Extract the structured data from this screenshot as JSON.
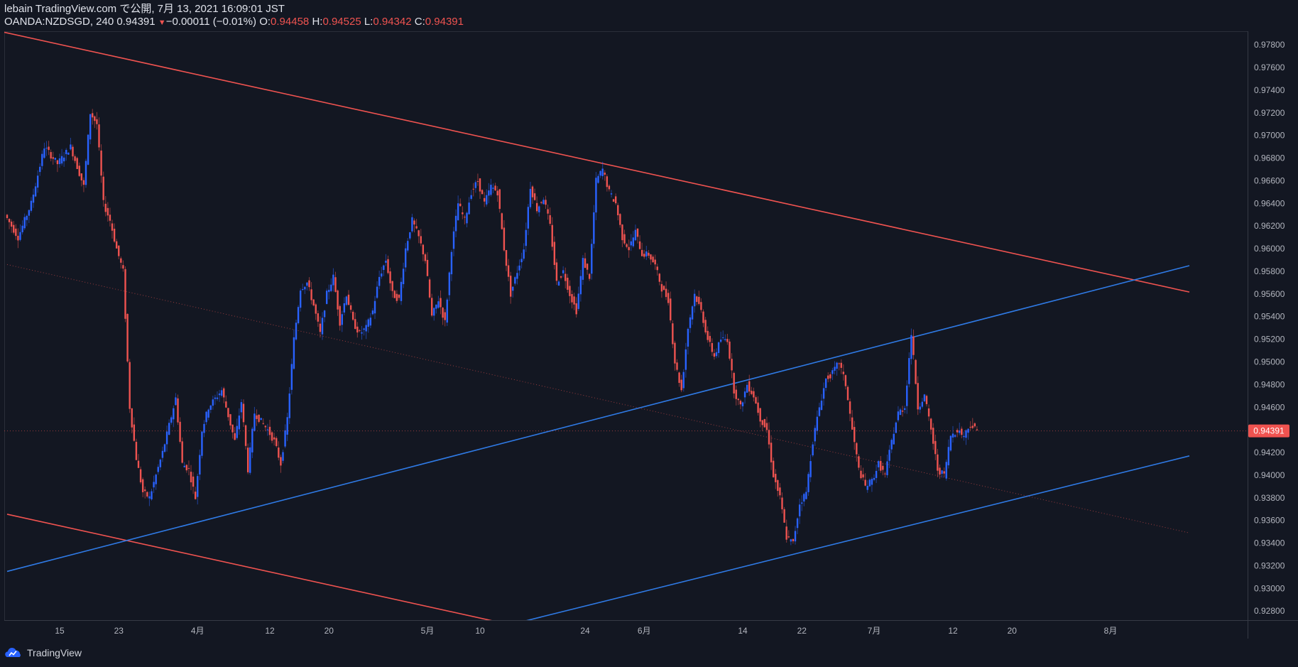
{
  "header": {
    "line1": "lebain TradingView.com で公開, 7月 13, 2021 16:09:01 JST",
    "symbol": "OANDA:NZDSGD, 240",
    "price": "0.94391",
    "change_arrow": "▼",
    "change": "−0.00011 (−0.01%)",
    "open_label": "O:",
    "open": "0.94458",
    "high_label": "H:",
    "high": "0.94525",
    "low_label": "L:",
    "low": "0.94342",
    "close_label": "C:",
    "close": "0.94391"
  },
  "footer": {
    "brand": "TradingView"
  },
  "colors": {
    "background": "#131722",
    "up": "#2962ff",
    "down": "#ef5350",
    "trend_red": "#f05350",
    "trend_blue": "#2f7ae5",
    "axis_text": "#b2b5be",
    "grid": "#2a2e39"
  },
  "chart_data": {
    "type": "candlestick",
    "title": "OANDA:NZDSGD, 240",
    "ylim": [
      0.9272,
      0.9792
    ],
    "yticks": [
      "0.97800",
      "0.97600",
      "0.97400",
      "0.97200",
      "0.97000",
      "0.96800",
      "0.96600",
      "0.96400",
      "0.96200",
      "0.96000",
      "0.95800",
      "0.95600",
      "0.95400",
      "0.95200",
      "0.95000",
      "0.94800",
      "0.94600",
      "0.94400",
      "0.94200",
      "0.94000",
      "0.93800",
      "0.93600",
      "0.93400",
      "0.93200",
      "0.93000",
      "0.92800"
    ],
    "xticks": [
      {
        "label": "15",
        "bar": 8
      },
      {
        "label": "23",
        "bar": 17
      },
      {
        "label": "4月",
        "bar": 29
      },
      {
        "label": "12",
        "bar": 40
      },
      {
        "label": "20",
        "bar": 49
      },
      {
        "label": "5月",
        "bar": 64
      },
      {
        "label": "10",
        "bar": 72
      },
      {
        "label": "24",
        "bar": 88
      },
      {
        "label": "6月",
        "bar": 97
      },
      {
        "label": "14",
        "bar": 112
      },
      {
        "label": "22",
        "bar": 121
      },
      {
        "label": "7月",
        "bar": 132
      },
      {
        "label": "12",
        "bar": 144
      },
      {
        "label": "20",
        "bar": 153
      },
      {
        "label": "8月",
        "bar": 168
      }
    ],
    "bars_total": 176,
    "last_price": "0.94391",
    "keypoints": [
      [
        0,
        0.963
      ],
      [
        2,
        0.961
      ],
      [
        4,
        0.964
      ],
      [
        6,
        0.969
      ],
      [
        8,
        0.9675
      ],
      [
        10,
        0.969
      ],
      [
        12,
        0.9655
      ],
      [
        13,
        0.972
      ],
      [
        14,
        0.971
      ],
      [
        15,
        0.964
      ],
      [
        16,
        0.9625
      ],
      [
        17,
        0.96
      ],
      [
        18,
        0.958
      ],
      [
        19,
        0.946
      ],
      [
        20,
        0.9415
      ],
      [
        21,
        0.9385
      ],
      [
        22,
        0.938
      ],
      [
        23,
        0.94
      ],
      [
        24,
        0.942
      ],
      [
        26,
        0.9468
      ],
      [
        27,
        0.941
      ],
      [
        28,
        0.9405
      ],
      [
        29,
        0.938
      ],
      [
        30,
        0.944
      ],
      [
        31,
        0.946
      ],
      [
        33,
        0.9475
      ],
      [
        35,
        0.943
      ],
      [
        36,
        0.9465
      ],
      [
        37,
        0.9405
      ],
      [
        38,
        0.9455
      ],
      [
        40,
        0.944
      ],
      [
        41,
        0.943
      ],
      [
        42,
        0.941
      ],
      [
        43,
        0.945
      ],
      [
        44,
        0.952
      ],
      [
        45,
        0.9565
      ],
      [
        46,
        0.957
      ],
      [
        47,
        0.955
      ],
      [
        48,
        0.9525
      ],
      [
        49,
        0.956
      ],
      [
        50,
        0.9575
      ],
      [
        51,
        0.9535
      ],
      [
        52,
        0.956
      ],
      [
        53,
        0.9535
      ],
      [
        54,
        0.9525
      ],
      [
        55,
        0.953
      ],
      [
        56,
        0.9545
      ],
      [
        57,
        0.9575
      ],
      [
        58,
        0.959
      ],
      [
        59,
        0.956
      ],
      [
        60,
        0.9555
      ],
      [
        61,
        0.96
      ],
      [
        62,
        0.9625
      ],
      [
        63,
        0.961
      ],
      [
        64,
        0.959
      ],
      [
        65,
        0.954
      ],
      [
        66,
        0.9555
      ],
      [
        67,
        0.9535
      ],
      [
        68,
        0.96
      ],
      [
        69,
        0.964
      ],
      [
        70,
        0.9625
      ],
      [
        71,
        0.965
      ],
      [
        72,
        0.966
      ],
      [
        73,
        0.964
      ],
      [
        74,
        0.9655
      ],
      [
        75,
        0.965
      ],
      [
        76,
        0.96
      ],
      [
        77,
        0.956
      ],
      [
        78,
        0.958
      ],
      [
        79,
        0.96
      ],
      [
        80,
        0.9655
      ],
      [
        81,
        0.9635
      ],
      [
        82,
        0.9645
      ],
      [
        83,
        0.962
      ],
      [
        84,
        0.957
      ],
      [
        85,
        0.958
      ],
      [
        86,
        0.956
      ],
      [
        87,
        0.9545
      ],
      [
        88,
        0.959
      ],
      [
        89,
        0.9575
      ],
      [
        90,
        0.966
      ],
      [
        91,
        0.967
      ],
      [
        92,
        0.965
      ],
      [
        93,
        0.964
      ],
      [
        94,
        0.961
      ],
      [
        95,
        0.96
      ],
      [
        96,
        0.9615
      ],
      [
        97,
        0.9595
      ],
      [
        98,
        0.9595
      ],
      [
        99,
        0.9585
      ],
      [
        100,
        0.9565
      ],
      [
        101,
        0.9555
      ],
      [
        102,
        0.95
      ],
      [
        103,
        0.9475
      ],
      [
        104,
        0.953
      ],
      [
        105,
        0.956
      ],
      [
        106,
        0.9545
      ],
      [
        107,
        0.952
      ],
      [
        108,
        0.9505
      ],
      [
        109,
        0.952
      ],
      [
        110,
        0.952
      ],
      [
        111,
        0.9475
      ],
      [
        112,
        0.946
      ],
      [
        113,
        0.948
      ],
      [
        114,
        0.947
      ],
      [
        115,
        0.945
      ],
      [
        116,
        0.944
      ],
      [
        117,
        0.94
      ],
      [
        118,
        0.938
      ],
      [
        119,
        0.9345
      ],
      [
        120,
        0.934
      ],
      [
        121,
        0.9375
      ],
      [
        122,
        0.9385
      ],
      [
        123,
        0.943
      ],
      [
        124,
        0.946
      ],
      [
        125,
        0.9485
      ],
      [
        126,
        0.949
      ],
      [
        127,
        0.95
      ],
      [
        128,
        0.948
      ],
      [
        129,
        0.944
      ],
      [
        130,
        0.9405
      ],
      [
        131,
        0.939
      ],
      [
        132,
        0.9395
      ],
      [
        133,
        0.941
      ],
      [
        134,
        0.94
      ],
      [
        135,
        0.943
      ],
      [
        136,
        0.9455
      ],
      [
        137,
        0.946
      ],
      [
        138,
        0.9525
      ],
      [
        139,
        0.946
      ],
      [
        140,
        0.947
      ],
      [
        141,
        0.944
      ],
      [
        142,
        0.9405
      ],
      [
        143,
        0.94
      ],
      [
        144,
        0.9435
      ],
      [
        145,
        0.944
      ],
      [
        146,
        0.9435
      ],
      [
        147,
        0.9445
      ],
      [
        148,
        0.9439
      ]
    ],
    "trendlines": [
      {
        "name": "upper-red",
        "color": "red",
        "from": [
          -5,
          0.97969
        ],
        "to": [
          180,
          0.95617
        ]
      },
      {
        "name": "lower-red",
        "color": "red",
        "from": [
          0,
          0.93655
        ],
        "to": [
          75,
          0.927
        ]
      },
      {
        "name": "lower-blue",
        "color": "blue",
        "from": [
          0,
          0.9315
        ],
        "to": [
          180,
          0.9585
        ]
      },
      {
        "name": "bottom-blue",
        "color": "blue",
        "from": [
          78,
          0.927
        ],
        "to": [
          180,
          0.9417
        ]
      },
      {
        "name": "mid-dotted",
        "color": "red-dotted",
        "from": [
          0,
          0.9586
        ],
        "to": [
          180,
          0.9349
        ]
      }
    ]
  }
}
